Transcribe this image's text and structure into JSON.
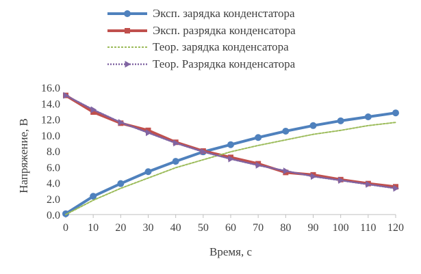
{
  "chart_data": {
    "type": "line",
    "xlabel": "Время, с",
    "ylabel": "Напряжение, В",
    "x": [
      0,
      10,
      20,
      30,
      40,
      50,
      60,
      70,
      80,
      90,
      100,
      110,
      120
    ],
    "xlim": [
      0,
      120
    ],
    "ylim": [
      0,
      16
    ],
    "x_ticks": [
      "0",
      "10",
      "20",
      "30",
      "40",
      "50",
      "60",
      "70",
      "80",
      "90",
      "100",
      "110",
      "120"
    ],
    "y_ticks": [
      "0.0",
      "2.0",
      "4.0",
      "6.0",
      "8.0",
      "10.0",
      "12.0",
      "14.0",
      "16.0"
    ],
    "grid": false,
    "legend_position": "top",
    "series": [
      {
        "name": "Эксп. зарядка конденстатора",
        "color": "#4f81bd",
        "style": "solid",
        "marker": "circle",
        "values": [
          0.1,
          2.3,
          3.9,
          5.4,
          6.7,
          7.9,
          8.8,
          9.7,
          10.5,
          11.2,
          11.8,
          12.3,
          12.8
        ]
      },
      {
        "name": "Эксп. разрядка конденсатора",
        "color": "#c0504d",
        "style": "solid",
        "marker": "square",
        "values": [
          15.0,
          12.9,
          11.5,
          10.6,
          9.1,
          8.0,
          7.2,
          6.4,
          5.3,
          5.0,
          4.4,
          3.9,
          3.5
        ]
      },
      {
        "name": "Теор. зарядка конденсатора",
        "color": "#9bbb59",
        "style": "dotted",
        "marker": "none",
        "values": [
          0.0,
          1.8,
          3.3,
          4.6,
          5.9,
          6.9,
          7.9,
          8.7,
          9.4,
          10.1,
          10.6,
          11.2,
          11.6
        ]
      },
      {
        "name": "Теор. Разрядка конденсатора",
        "color": "#8064a2",
        "style": "dotted",
        "marker": "triangle",
        "values": [
          15.0,
          13.2,
          11.6,
          10.3,
          9.0,
          7.9,
          7.0,
          6.2,
          5.5,
          4.8,
          4.3,
          3.8,
          3.3
        ]
      }
    ]
  }
}
